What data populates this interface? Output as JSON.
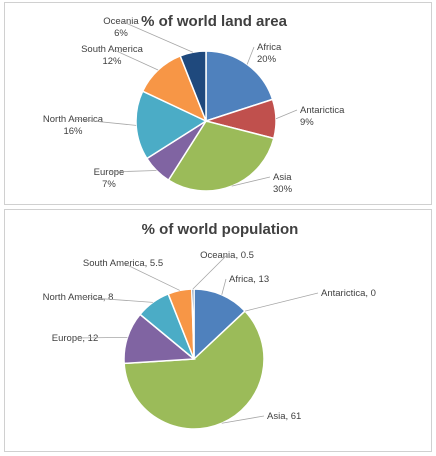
{
  "chart_data": [
    {
      "type": "pie",
      "title": "% of world land area",
      "slices": [
        {
          "label": "Africa",
          "value": 20,
          "display": "20%",
          "color": "#4f81bd"
        },
        {
          "label": "Antarictica",
          "value": 9,
          "display": "9%",
          "color": "#c0504d"
        },
        {
          "label": "Asia",
          "value": 30,
          "display": "30%",
          "color": "#9bbb59"
        },
        {
          "label": "Europe",
          "value": 7,
          "display": "7%",
          "color": "#8064a2"
        },
        {
          "label": "North America",
          "value": 16,
          "display": "16%",
          "color": "#4bacc6"
        },
        {
          "label": "South America",
          "value": 12,
          "display": "12%",
          "color": "#f79646"
        },
        {
          "label": "Oceania",
          "value": 6,
          "display": "6%",
          "color": "#1f497d"
        }
      ]
    },
    {
      "type": "pie",
      "title": "% of world population",
      "slices": [
        {
          "label": "Africa",
          "value": 13,
          "display": "13",
          "color": "#4f81bd"
        },
        {
          "label": "Antarictica",
          "value": 0,
          "display": "0",
          "color": "#c0504d"
        },
        {
          "label": "Asia",
          "value": 61,
          "display": "61",
          "color": "#9bbb59"
        },
        {
          "label": "Europe",
          "value": 12,
          "display": "12",
          "color": "#8064a2"
        },
        {
          "label": "North America",
          "value": 8,
          "display": "8",
          "color": "#4bacc6"
        },
        {
          "label": "South America",
          "value": 5.5,
          "display": "5.5",
          "color": "#f79646"
        },
        {
          "label": "Oceania",
          "value": 0.5,
          "display": "0.5",
          "color": "#1f497d"
        }
      ]
    }
  ]
}
